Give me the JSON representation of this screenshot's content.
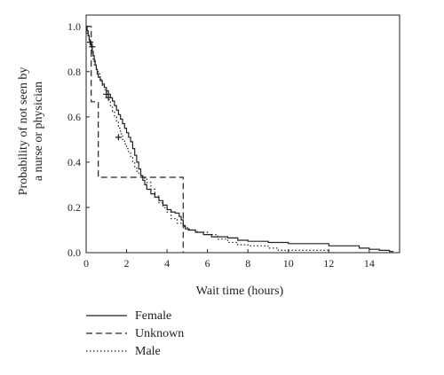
{
  "chart_data": {
    "type": "line",
    "title": "",
    "xlabel": "Wait time (hours)",
    "ylabel_lines": [
      "Probability of not seen by",
      "a nurse or physician"
    ],
    "xlim": [
      0,
      15.5
    ],
    "ylim": [
      0,
      1.05
    ],
    "x_ticks": [
      0,
      2,
      4,
      6,
      8,
      10,
      12,
      14
    ],
    "y_ticks": [
      0.0,
      0.2,
      0.4,
      0.6,
      0.8,
      1.0
    ],
    "y_tick_labels": [
      "0.0",
      "0.2",
      "0.4",
      "0.6",
      "0.8",
      "1.0"
    ],
    "legend_position": "below-left",
    "series": [
      {
        "name": "Female",
        "style": "solid",
        "color": "#222222",
        "step": true,
        "points": [
          [
            0,
            1.0
          ],
          [
            0.05,
            0.98
          ],
          [
            0.1,
            0.96
          ],
          [
            0.15,
            0.94
          ],
          [
            0.2,
            0.93
          ],
          [
            0.25,
            0.91
          ],
          [
            0.3,
            0.89
          ],
          [
            0.35,
            0.87
          ],
          [
            0.4,
            0.85
          ],
          [
            0.45,
            0.83
          ],
          [
            0.5,
            0.81
          ],
          [
            0.55,
            0.79
          ],
          [
            0.6,
            0.775
          ],
          [
            0.7,
            0.76
          ],
          [
            0.8,
            0.745
          ],
          [
            0.9,
            0.73
          ],
          [
            1.0,
            0.715
          ],
          [
            1.1,
            0.7
          ],
          [
            1.2,
            0.685
          ],
          [
            1.3,
            0.67
          ],
          [
            1.4,
            0.65
          ],
          [
            1.5,
            0.63
          ],
          [
            1.6,
            0.61
          ],
          [
            1.7,
            0.59
          ],
          [
            1.8,
            0.57
          ],
          [
            1.9,
            0.55
          ],
          [
            2.0,
            0.53
          ],
          [
            2.1,
            0.51
          ],
          [
            2.2,
            0.49
          ],
          [
            2.3,
            0.46
          ],
          [
            2.4,
            0.43
          ],
          [
            2.5,
            0.4
          ],
          [
            2.6,
            0.37
          ],
          [
            2.7,
            0.34
          ],
          [
            2.8,
            0.32
          ],
          [
            2.9,
            0.3
          ],
          [
            3.0,
            0.28
          ],
          [
            3.2,
            0.26
          ],
          [
            3.4,
            0.245
          ],
          [
            3.6,
            0.23
          ],
          [
            3.8,
            0.21
          ],
          [
            4.0,
            0.19
          ],
          [
            4.2,
            0.18
          ],
          [
            4.4,
            0.175
          ],
          [
            4.6,
            0.16
          ],
          [
            4.7,
            0.145
          ],
          [
            4.8,
            0.12
          ],
          [
            4.9,
            0.105
          ],
          [
            5.1,
            0.1
          ],
          [
            5.4,
            0.09
          ],
          [
            5.8,
            0.08
          ],
          [
            6.2,
            0.07
          ],
          [
            7.0,
            0.065
          ],
          [
            7.5,
            0.055
          ],
          [
            8.0,
            0.05
          ],
          [
            9.0,
            0.045
          ],
          [
            10.0,
            0.04
          ],
          [
            12.0,
            0.03
          ],
          [
            13.5,
            0.02
          ],
          [
            14.0,
            0.015
          ],
          [
            14.5,
            0.01
          ],
          [
            15.0,
            0.005
          ],
          [
            15.2,
            0.005
          ]
        ],
        "censor_marks": [
          [
            0.2,
            0.93
          ],
          [
            0.3,
            0.91
          ],
          [
            1.0,
            0.7
          ],
          [
            1.1,
            0.685
          ]
        ]
      },
      {
        "name": "Unknown",
        "style": "dashed",
        "color": "#222222",
        "step": true,
        "points": [
          [
            0,
            1.0
          ],
          [
            0.25,
            1.0
          ],
          [
            0.25,
            0.667
          ],
          [
            0.6,
            0.667
          ],
          [
            0.6,
            0.333
          ],
          [
            4.8,
            0.333
          ],
          [
            4.8,
            0.0
          ]
        ],
        "censor_marks": []
      },
      {
        "name": "Male",
        "style": "dotted",
        "color": "#222222",
        "step": true,
        "points": [
          [
            0,
            1.0
          ],
          [
            0.05,
            0.97
          ],
          [
            0.1,
            0.95
          ],
          [
            0.15,
            0.93
          ],
          [
            0.2,
            0.91
          ],
          [
            0.25,
            0.89
          ],
          [
            0.3,
            0.87
          ],
          [
            0.35,
            0.85
          ],
          [
            0.4,
            0.83
          ],
          [
            0.5,
            0.81
          ],
          [
            0.6,
            0.79
          ],
          [
            0.7,
            0.765
          ],
          [
            0.8,
            0.74
          ],
          [
            0.9,
            0.72
          ],
          [
            1.0,
            0.7
          ],
          [
            1.1,
            0.675
          ],
          [
            1.2,
            0.65
          ],
          [
            1.3,
            0.625
          ],
          [
            1.4,
            0.6
          ],
          [
            1.5,
            0.575
          ],
          [
            1.6,
            0.55
          ],
          [
            1.7,
            0.525
          ],
          [
            1.8,
            0.5
          ],
          [
            1.9,
            0.48
          ],
          [
            2.0,
            0.46
          ],
          [
            2.1,
            0.44
          ],
          [
            2.2,
            0.42
          ],
          [
            2.3,
            0.4
          ],
          [
            2.4,
            0.38
          ],
          [
            2.5,
            0.36
          ],
          [
            2.6,
            0.345
          ],
          [
            2.8,
            0.33
          ],
          [
            3.0,
            0.31
          ],
          [
            3.2,
            0.28
          ],
          [
            3.4,
            0.25
          ],
          [
            3.6,
            0.22
          ],
          [
            3.8,
            0.2
          ],
          [
            4.0,
            0.18
          ],
          [
            4.2,
            0.15
          ],
          [
            4.5,
            0.13
          ],
          [
            4.8,
            0.115
          ],
          [
            5.0,
            0.1
          ],
          [
            5.5,
            0.09
          ],
          [
            6.0,
            0.08
          ],
          [
            6.5,
            0.06
          ],
          [
            7.0,
            0.045
          ],
          [
            7.5,
            0.035
          ],
          [
            8.0,
            0.03
          ],
          [
            9.0,
            0.02
          ],
          [
            9.5,
            0.01
          ],
          [
            10.5,
            0.01
          ],
          [
            12.0,
            0.01
          ]
        ],
        "censor_marks": [
          [
            1.6,
            0.51
          ]
        ]
      }
    ]
  }
}
